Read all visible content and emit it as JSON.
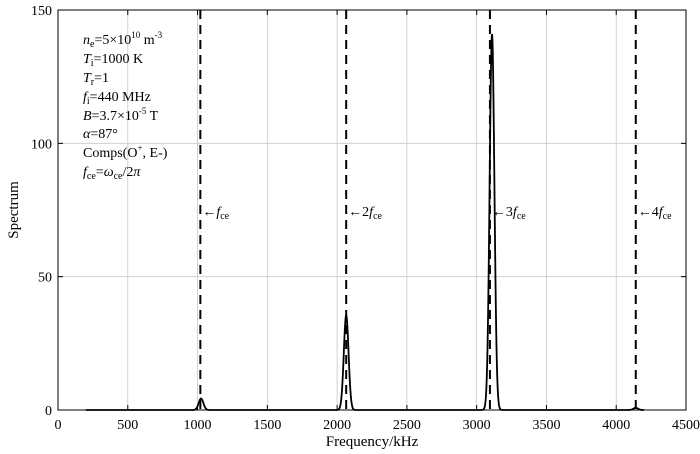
{
  "chart_data": {
    "type": "line",
    "xlabel": "Frequency/kHz",
    "ylabel": "Spectrum",
    "xlim": [
      0,
      4500
    ],
    "ylim": [
      0,
      150
    ],
    "xticks": [
      "0",
      "500",
      "1000",
      "1500",
      "2000",
      "2500",
      "3000",
      "3500",
      "4000",
      "4500"
    ],
    "yticks": [
      "0",
      "50",
      "100",
      "150"
    ],
    "grid": true,
    "x_start": 200,
    "peaks": [
      {
        "center": 1025,
        "height": 4.3
      },
      {
        "center": 2065,
        "height": 35.5
      },
      {
        "center": 3110,
        "height": 141
      },
      {
        "center": 4140,
        "height": 0.8
      }
    ],
    "markers": [
      {
        "x": 1020,
        "arrow": "←",
        "coef": "",
        "f": "f",
        "sub": "ce"
      },
      {
        "x": 2065,
        "arrow": "←",
        "coef": "2",
        "f": "f",
        "sub": "ce"
      },
      {
        "x": 3095,
        "arrow": "←",
        "coef": "3",
        "f": "f",
        "sub": "ce"
      },
      {
        "x": 4140,
        "arrow": "←",
        "coef": "4",
        "f": "f",
        "sub": "ce"
      }
    ],
    "params": {
      "ne": {
        "sym": "n",
        "sub": "e",
        "text": "=5×10",
        "sup": "10",
        "tail": " m",
        "tailsup": "-3"
      },
      "Ti": {
        "sym": "T",
        "sub": "i",
        "text": "=1000 K"
      },
      "Tr": {
        "sym": "T",
        "sub": "r",
        "text": "=1"
      },
      "fi": {
        "sym": "f",
        "sub": "i",
        "text": "=440 MHz"
      },
      "B": {
        "sym": "B",
        "text": "=3.7×10",
        "sup": "-5",
        "tail": " T"
      },
      "alpha": {
        "sym": "α",
        "text": "=87°"
      },
      "comps": {
        "text": "Comps(O",
        "sup": "+",
        "tail": ", E-)"
      },
      "fce": {
        "sym": "f",
        "sub": "ce",
        "text": "=",
        "sym2": "ω",
        "sub2": "ce",
        "tail": "/2",
        "sym3": "π"
      }
    }
  }
}
